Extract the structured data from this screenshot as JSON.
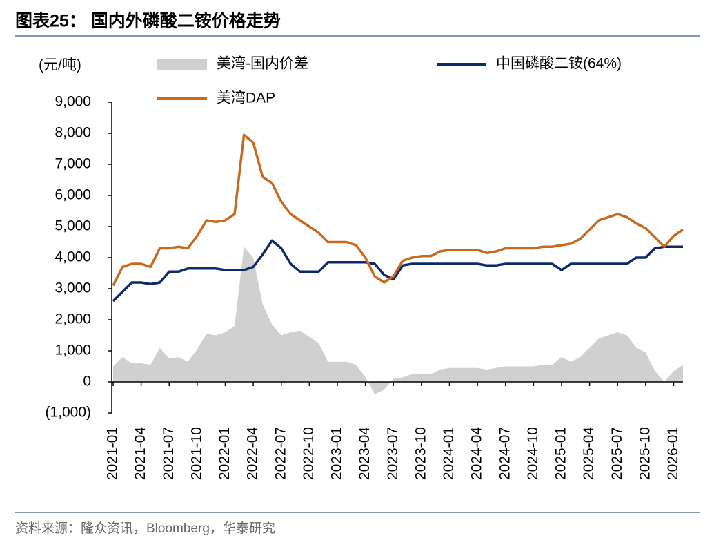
{
  "chart_data": {
    "type": "line",
    "title": "图表25： 国内外磷酸二铵价格走势",
    "y_label": "(元/吨)",
    "source": "资料来源：隆众资讯，Bloomberg，华泰研究",
    "categories": [
      "2021-01",
      null,
      null,
      "2021-04",
      null,
      null,
      "2021-07",
      null,
      null,
      "2021-10",
      null,
      null,
      "2022-01",
      null,
      null,
      "2022-04",
      null,
      null,
      "2022-07",
      null,
      null,
      "2022-10",
      null,
      null,
      "2023-01",
      null,
      null,
      "2023-04",
      null,
      null,
      "2023-07",
      null,
      null,
      "2023-10",
      null,
      null,
      "2024-01",
      null,
      null,
      "2024-04",
      null,
      null,
      "2024-07",
      null,
      null,
      "2024-10",
      null,
      null,
      "2025-01",
      null,
      null,
      "2025-04",
      null,
      null,
      "2025-07",
      null,
      null,
      "2025-10",
      null,
      null,
      "2026-01",
      null
    ],
    "series": [
      {
        "name": "美湾-国内价差",
        "kind": "area",
        "color": "#d0d0d0",
        "values": [
          500,
          800,
          600,
          600,
          550,
          1100,
          750,
          800,
          650,
          1050,
          1550,
          1500,
          1600,
          1800,
          4350,
          4000,
          2500,
          1850,
          1500,
          1600,
          1650,
          1450,
          1250,
          650,
          650,
          650,
          550,
          150,
          -400,
          -250,
          100,
          150,
          250,
          250,
          250,
          400,
          450,
          450,
          450,
          450,
          400,
          450,
          500,
          500,
          500,
          500,
          550,
          550,
          800,
          650,
          800,
          1100,
          1400,
          1500,
          1600,
          1500,
          1100,
          950,
          350,
          0,
          350,
          550
        ]
      },
      {
        "name": "中国磷酸二铵(64%)",
        "kind": "line",
        "color": "#0d2a6b",
        "values": [
          2600,
          2900,
          3200,
          3200,
          3150,
          3200,
          3550,
          3550,
          3650,
          3650,
          3650,
          3650,
          3600,
          3600,
          3600,
          3700,
          4100,
          4550,
          4300,
          3800,
          3550,
          3550,
          3550,
          3850,
          3850,
          3850,
          3850,
          3850,
          3800,
          3450,
          3300,
          3750,
          3800,
          3800,
          3800,
          3800,
          3800,
          3800,
          3800,
          3800,
          3750,
          3750,
          3800,
          3800,
          3800,
          3800,
          3800,
          3800,
          3600,
          3800,
          3800,
          3800,
          3800,
          3800,
          3800,
          3800,
          4000,
          4000,
          4300,
          4350,
          4350,
          4350
        ]
      },
      {
        "name": "美湾DAP",
        "kind": "line",
        "color": "#c8691e",
        "values": [
          3100,
          3700,
          3800,
          3800,
          3700,
          4300,
          4300,
          4350,
          4300,
          4700,
          5200,
          5150,
          5200,
          5400,
          7950,
          7700,
          6600,
          6400,
          5800,
          5400,
          5200,
          5000,
          4800,
          4500,
          4500,
          4500,
          4400,
          4000,
          3400,
          3200,
          3400,
          3900,
          4000,
          4050,
          4050,
          4200,
          4250,
          4250,
          4250,
          4250,
          4150,
          4200,
          4300,
          4300,
          4300,
          4300,
          4350,
          4350,
          4400,
          4450,
          4600,
          4900,
          5200,
          5300,
          5400,
          5300,
          5100,
          4950,
          4650,
          4350,
          4700,
          4900
        ]
      }
    ],
    "ylim": [
      -1000,
      9000
    ],
    "yticks": [
      {
        "value": -1000,
        "label": "(1,000)"
      },
      0,
      {
        "value": 1000,
        "label": "1,000"
      },
      {
        "value": 2000,
        "label": "2,000"
      },
      {
        "value": 3000,
        "label": "3,000"
      },
      {
        "value": 4000,
        "label": "4,000"
      },
      {
        "value": 5000,
        "label": "5,000"
      },
      {
        "value": 6000,
        "label": "6,000"
      },
      {
        "value": 7000,
        "label": "7,000"
      },
      {
        "value": 8000,
        "label": "8,000"
      },
      {
        "value": 9000,
        "label": "9,000"
      }
    ]
  }
}
